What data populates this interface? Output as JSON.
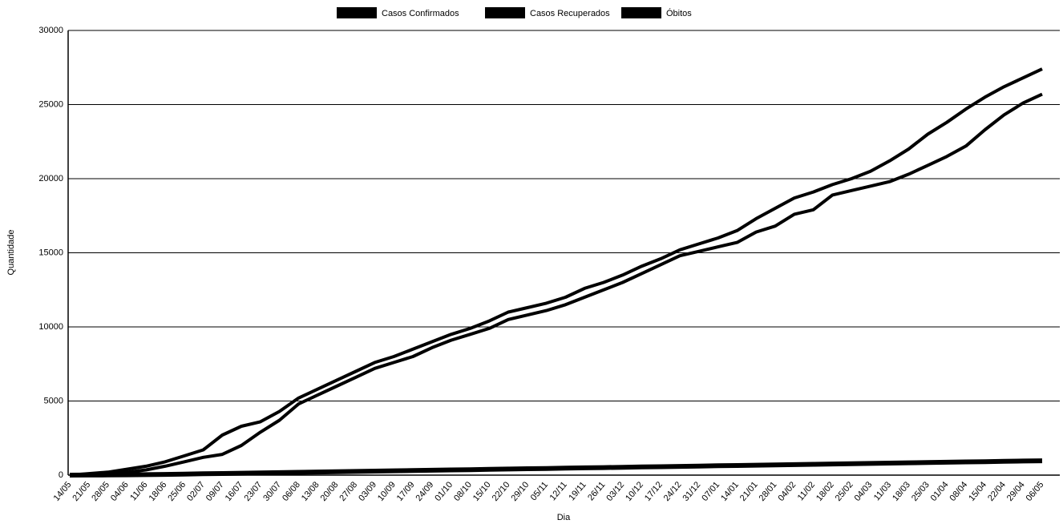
{
  "chart_data": {
    "type": "line",
    "x_label": "Dia",
    "y_label": "Quantidade",
    "categories": [
      "14/05",
      "21/05",
      "28/05",
      "04/06",
      "11/06",
      "18/06",
      "25/06",
      "02/07",
      "09/07",
      "16/07",
      "23/07",
      "30/07",
      "06/08",
      "13/08",
      "20/08",
      "27/08",
      "03/09",
      "10/09",
      "17/09",
      "24/09",
      "01/10",
      "08/10",
      "15/10",
      "22/10",
      "29/10",
      "05/11",
      "12/11",
      "19/11",
      "26/11",
      "03/12",
      "10/12",
      "17/12",
      "24/12",
      "31/12",
      "07/01",
      "14/01",
      "21/01",
      "28/01",
      "04/02",
      "11/02",
      "18/02",
      "25/02",
      "04/03",
      "11/03",
      "18/03",
      "25/03",
      "01/04",
      "08/04",
      "15/04",
      "22/04",
      "29/04",
      "06/05"
    ],
    "series": [
      {
        "name": "Casos Confirmados",
        "color": "#000000",
        "values": [
          0,
          100,
          200,
          400,
          600,
          900,
          1300,
          1700,
          2700,
          3300,
          3600,
          4300,
          5200,
          5800,
          6400,
          7000,
          7600,
          8000,
          8500,
          9000,
          9500,
          9900,
          10400,
          11000,
          11300,
          11600,
          12000,
          12600,
          13000,
          13500,
          14100,
          14600,
          15200,
          15600,
          16000,
          16500,
          17300,
          18000,
          18700,
          19100,
          19600,
          20000,
          20500,
          21200,
          22000,
          23000,
          23800,
          24700,
          25500,
          26200,
          26800,
          27400
        ]
      },
      {
        "name": "Casos Recuperados",
        "color": "#000000",
        "values": [
          0,
          0,
          50,
          200,
          350,
          600,
          900,
          1200,
          1400,
          2000,
          2900,
          3700,
          4800,
          5400,
          6000,
          6600,
          7200,
          7600,
          8000,
          8600,
          9100,
          9500,
          9900,
          10500,
          10800,
          11100,
          11500,
          12000,
          12500,
          13000,
          13600,
          14200,
          14800,
          15100,
          15400,
          15700,
          16400,
          16800,
          17600,
          17900,
          18900,
          19200,
          19500,
          19800,
          20300,
          20900,
          21500,
          22200,
          23300,
          24300,
          25100,
          25700
        ]
      },
      {
        "name": "Óbitos",
        "color": "#000000",
        "values": [
          0,
          5,
          10,
          20,
          30,
          50,
          70,
          90,
          110,
          130,
          150,
          170,
          190,
          210,
          230,
          250,
          270,
          290,
          310,
          330,
          350,
          370,
          390,
          410,
          430,
          450,
          470,
          490,
          510,
          530,
          550,
          570,
          590,
          610,
          630,
          650,
          670,
          690,
          710,
          730,
          750,
          770,
          790,
          810,
          830,
          850,
          870,
          890,
          910,
          930,
          950,
          970
        ]
      }
    ],
    "ylim": [
      0,
      30000
    ],
    "yticks": [
      0,
      5000,
      10000,
      15000,
      20000,
      25000,
      30000
    ],
    "grid": true
  }
}
